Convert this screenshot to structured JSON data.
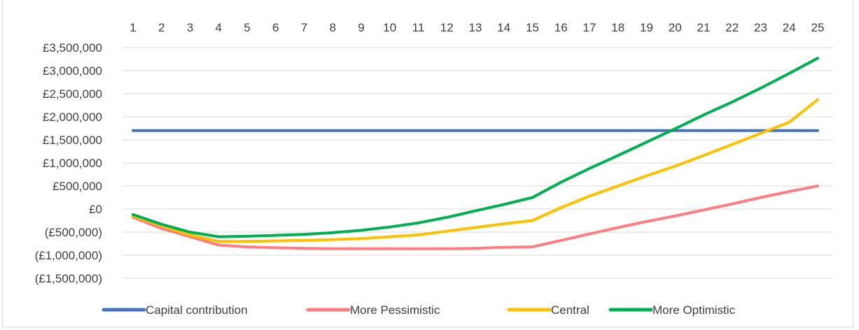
{
  "chart_data": {
    "type": "line",
    "title": "",
    "xlabel": "",
    "ylabel": "",
    "x": [
      1,
      2,
      3,
      4,
      5,
      6,
      7,
      8,
      9,
      10,
      11,
      12,
      13,
      14,
      15,
      16,
      17,
      18,
      19,
      20,
      21,
      22,
      23,
      24,
      25
    ],
    "y_ticks": [
      3500000,
      3000000,
      2500000,
      2000000,
      1500000,
      1000000,
      500000,
      0,
      -500000,
      -1000000,
      -1500000
    ],
    "y_tick_labels": [
      "£3,500,000",
      "£3,000,000",
      "£2,500,000",
      "£2,000,000",
      "£1,500,000",
      "£1,000,000",
      "£500,000",
      "£0",
      "(£500,000)",
      "(£1,000,000)",
      "(£1,500,000)"
    ],
    "ylim": [
      -1500000,
      3500000
    ],
    "x_axis_position": "top",
    "grid": true,
    "legend": "bottom",
    "series": [
      {
        "name": "Capital contribution",
        "color": "#4472c4",
        "values": [
          1700000,
          1700000,
          1700000,
          1700000,
          1700000,
          1700000,
          1700000,
          1700000,
          1700000,
          1700000,
          1700000,
          1700000,
          1700000,
          1700000,
          1700000,
          1700000,
          1700000,
          1700000,
          1700000,
          1700000,
          1700000,
          1700000,
          1700000,
          1700000,
          1700000
        ]
      },
      {
        "name": "More Pessimistic",
        "color": "#ff7c80",
        "values": [
          -180000,
          -420000,
          -600000,
          -780000,
          -820000,
          -840000,
          -850000,
          -860000,
          -860000,
          -860000,
          -860000,
          -860000,
          -850000,
          -830000,
          -820000,
          -680000,
          -540000,
          -400000,
          -270000,
          -150000,
          -20000,
          110000,
          250000,
          380000,
          500000
        ]
      },
      {
        "name": "Central",
        "color": "#ffc000",
        "values": [
          -150000,
          -360000,
          -560000,
          -700000,
          -700000,
          -690000,
          -680000,
          -660000,
          -640000,
          -600000,
          -560000,
          -480000,
          -400000,
          -320000,
          -250000,
          30000,
          280000,
          500000,
          720000,
          930000,
          1160000,
          1400000,
          1640000,
          1880000,
          2370000
        ]
      },
      {
        "name": "More Optimistic",
        "color": "#00b050",
        "values": [
          -120000,
          -330000,
          -500000,
          -600000,
          -590000,
          -570000,
          -550000,
          -510000,
          -460000,
          -390000,
          -300000,
          -180000,
          -40000,
          100000,
          250000,
          580000,
          880000,
          1160000,
          1450000,
          1740000,
          2040000,
          2320000,
          2620000,
          2940000,
          3270000
        ]
      }
    ]
  }
}
